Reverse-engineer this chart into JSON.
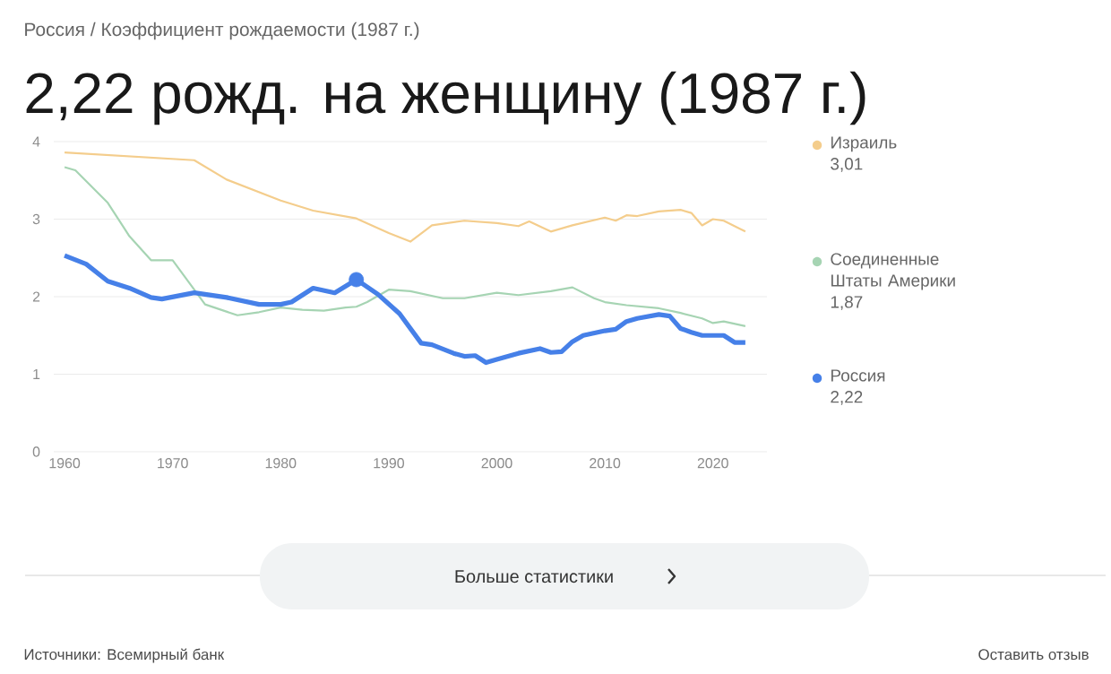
{
  "chart_data": {
    "type": "line",
    "subtitle": "Россия / Коэффициент рождаемости (1987 г.)",
    "title": "2,22 рожд. на женщину (1987 г.)",
    "xlim": [
      1959,
      2025
    ],
    "xticks": [
      1960,
      1970,
      1980,
      1990,
      2000,
      2010,
      2020
    ],
    "ylim": [
      0,
      4
    ],
    "yticks": [
      0,
      1,
      2,
      3,
      4
    ],
    "grid": "y",
    "legend": "right",
    "marker": "none",
    "series": [
      {
        "name": "Израиль",
        "color": "#f4cd8c",
        "x": [
          1960,
          1972,
          1975,
          1980,
          1983,
          1987,
          1990,
          1992,
          1994,
          1997,
          2000,
          2002,
          2003,
          2005,
          2007,
          2010,
          2011,
          2012,
          2013,
          2015,
          2017,
          2018,
          2019,
          2020,
          2021,
          2022,
          2023
        ],
        "values": [
          3.86,
          3.76,
          3.51,
          3.24,
          3.11,
          3.01,
          2.82,
          2.71,
          2.92,
          2.98,
          2.95,
          2.91,
          2.97,
          2.84,
          2.92,
          3.02,
          2.98,
          3.05,
          3.04,
          3.1,
          3.12,
          3.08,
          2.92,
          3.0,
          2.98,
          2.91,
          2.84
        ]
      },
      {
        "name": "Соединенные Штаты Америки",
        "color": "#a6d4b3",
        "x": [
          1960,
          1961,
          1964,
          1966,
          1968,
          1970,
          1972,
          1973,
          1976,
          1978,
          1980,
          1982,
          1984,
          1986,
          1987,
          1988,
          1990,
          1992,
          1995,
          1997,
          2000,
          2002,
          2005,
          2007,
          2009,
          2010,
          2012,
          2015,
          2017,
          2019,
          2020,
          2021,
          2023
        ],
        "values": [
          3.67,
          3.63,
          3.21,
          2.78,
          2.47,
          2.47,
          2.09,
          1.9,
          1.76,
          1.8,
          1.86,
          1.83,
          1.82,
          1.86,
          1.87,
          1.93,
          2.09,
          2.07,
          1.98,
          1.98,
          2.05,
          2.02,
          2.07,
          2.12,
          1.98,
          1.93,
          1.89,
          1.85,
          1.79,
          1.72,
          1.66,
          1.68,
          1.62
        ]
      },
      {
        "name": "Россия",
        "color": "#4680e8",
        "x": [
          1960,
          1962,
          1964,
          1966,
          1968,
          1969,
          1972,
          1975,
          1978,
          1980,
          1981,
          1983,
          1985,
          1987,
          1989,
          1991,
          1993,
          1994,
          1996,
          1997,
          1998,
          1999,
          2000,
          2002,
          2004,
          2005,
          2006,
          2007,
          2008,
          2010,
          2011,
          2012,
          2013,
          2015,
          2016,
          2017,
          2018,
          2019,
          2020,
          2021,
          2022,
          2023
        ],
        "values": [
          2.53,
          2.42,
          2.2,
          2.11,
          1.99,
          1.97,
          2.05,
          1.99,
          1.9,
          1.9,
          1.93,
          2.11,
          2.05,
          2.22,
          2.03,
          1.78,
          1.4,
          1.38,
          1.27,
          1.23,
          1.24,
          1.15,
          1.19,
          1.27,
          1.33,
          1.28,
          1.29,
          1.42,
          1.5,
          1.56,
          1.58,
          1.68,
          1.72,
          1.77,
          1.75,
          1.59,
          1.54,
          1.5,
          1.5,
          1.5,
          1.41,
          1.41
        ]
      },
      {
        "type": "scatter",
        "marker": "circle",
        "color": "#4680e8",
        "x": [
          1987
        ],
        "values": [
          2.22
        ]
      }
    ],
    "annotations": [
      "3,01",
      "1,87",
      "2,22",
      "Больше статистики",
      "Источники: Всемирный банк",
      "Оставить отзыв"
    ]
  }
}
